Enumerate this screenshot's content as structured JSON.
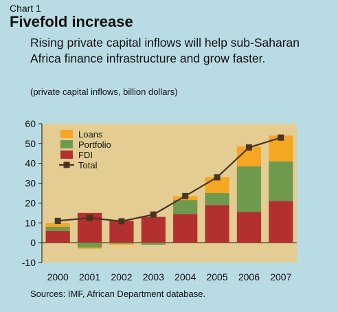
{
  "header": {
    "chart_label": "Chart 1",
    "title": "Fivefold increase",
    "subtitle": "Rising private capital inflows will help sub-Saharan Africa finance infrastructure and grow faster.",
    "units": "(private capital inflows, billion dollars)"
  },
  "footer": {
    "source": "Sources: IMF, African Department database."
  },
  "colors": {
    "background": "#b9dbe4",
    "plot_area": "#e3cd92",
    "fdi": "#b2312f",
    "portfolio": "#6f9a4e",
    "loans": "#f5a623",
    "total_line": "#4a3420"
  },
  "chart_data": {
    "type": "bar",
    "stacked": true,
    "categories": [
      "2000",
      "2001",
      "2002",
      "2003",
      "2004",
      "2005",
      "2006",
      "2007"
    ],
    "ylim": [
      -10,
      60
    ],
    "yticks": [
      -10,
      0,
      10,
      20,
      30,
      40,
      50,
      60
    ],
    "legend_position": "top-left",
    "series": [
      {
        "name": "Loans",
        "values": [
          2,
          -0.5,
          -0.5,
          0,
          2,
          8,
          10,
          13
        ]
      },
      {
        "name": "Portfolio",
        "values": [
          2,
          -2.5,
          -0.5,
          -1,
          7,
          6,
          23,
          20
        ]
      },
      {
        "name": "FDI",
        "values": [
          6,
          15,
          11,
          13,
          14.5,
          19,
          15.5,
          21
        ]
      },
      {
        "name": "Total",
        "type": "line",
        "values": [
          11,
          12.5,
          10.8,
          14.2,
          23.5,
          33,
          48,
          53
        ]
      }
    ]
  }
}
